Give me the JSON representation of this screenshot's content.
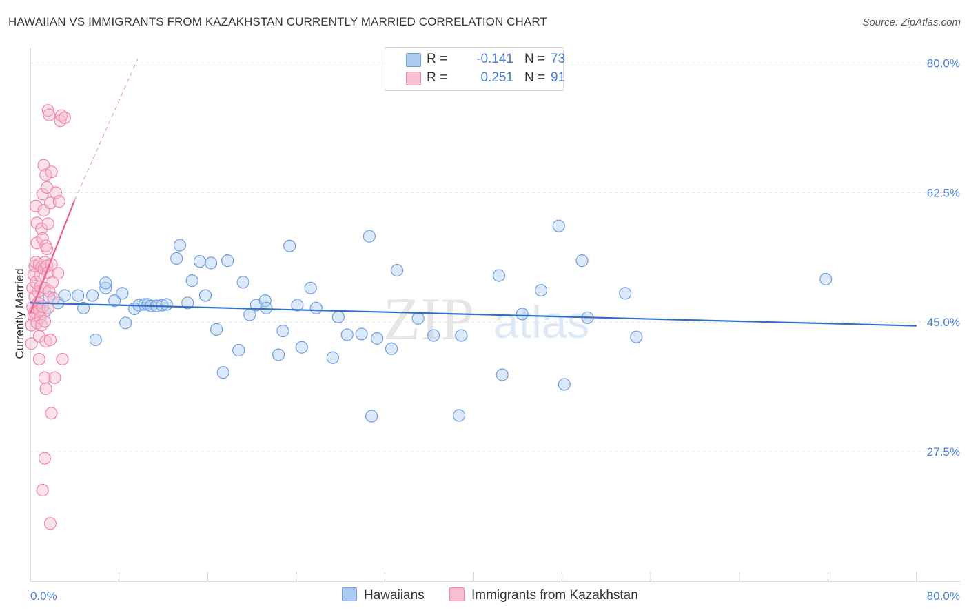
{
  "header": {
    "title": "HAWAIIAN VS IMMIGRANTS FROM KAZAKHSTAN CURRENTLY MARRIED CORRELATION CHART",
    "source": "Source: ZipAtlas.com"
  },
  "watermark": {
    "zip": "ZIP",
    "atlas": "atlas"
  },
  "legend_top": {
    "rows": [
      {
        "r_label": "R =",
        "r_value": "-0.141",
        "n_label": "N =",
        "n_value": "73"
      },
      {
        "r_label": "R =",
        "r_value": "0.251",
        "n_label": "N =",
        "n_value": "91"
      }
    ]
  },
  "legend_bottom": {
    "items": [
      "Hawaiians",
      "Immigrants from Kazakhstan"
    ]
  },
  "colors": {
    "blue_fill": "#aecbf2",
    "blue_stroke": "#6d9ee0",
    "blue_line": "#2e6fd0",
    "pink_fill": "#f7bfd1",
    "pink_stroke": "#ef86a8",
    "pink_line": "#ec5e8e",
    "tick_text": "#4a7fd4",
    "grid": "#e3e3e3"
  },
  "chart_data": {
    "type": "scatter",
    "title": "HAWAIIAN VS IMMIGRANTS FROM KAZAKHSTAN CURRENTLY MARRIED CORRELATION CHART",
    "xlabel": "",
    "ylabel": "Currently Married",
    "xlim": [
      0,
      80
    ],
    "ylim": [
      10,
      82
    ],
    "x_tick_labels": [
      "0.0%",
      "80.0%"
    ],
    "y_ticks": [
      27.5,
      45.0,
      62.5,
      80.0
    ],
    "y_tick_labels": [
      "27.5%",
      "45.0%",
      "62.5%",
      "80.0%"
    ],
    "grid": true,
    "legend_position": "top-center",
    "series": [
      {
        "name": "Hawaiians",
        "r": -0.141,
        "n": 73,
        "trend": {
          "x": [
            0,
            80
          ],
          "y": [
            47.6,
            44.5
          ]
        },
        "points": [
          [
            0.8,
            47.1
          ],
          [
            1.3,
            46.4
          ],
          [
            1.7,
            48.4
          ],
          [
            2.5,
            47.6
          ],
          [
            3.1,
            48.6
          ],
          [
            4.3,
            48.6
          ],
          [
            4.8,
            46.9
          ],
          [
            5.6,
            48.6
          ],
          [
            5.9,
            42.6
          ],
          [
            6.8,
            49.6
          ],
          [
            6.8,
            50.3
          ],
          [
            7.6,
            47.9
          ],
          [
            8.3,
            48.9
          ],
          [
            8.6,
            44.9
          ],
          [
            9.4,
            46.8
          ],
          [
            9.8,
            47.3
          ],
          [
            10.3,
            47.4
          ],
          [
            10.6,
            47.4
          ],
          [
            10.9,
            47.2
          ],
          [
            11.4,
            47.2
          ],
          [
            11.9,
            47.3
          ],
          [
            12.3,
            47.4
          ],
          [
            13.2,
            53.6
          ],
          [
            13.5,
            55.4
          ],
          [
            14.2,
            47.6
          ],
          [
            14.6,
            50.6
          ],
          [
            15.3,
            53.2
          ],
          [
            15.8,
            48.6
          ],
          [
            16.3,
            53.0
          ],
          [
            16.8,
            44.0
          ],
          [
            17.4,
            38.2
          ],
          [
            17.8,
            53.3
          ],
          [
            18.8,
            41.2
          ],
          [
            19.2,
            50.4
          ],
          [
            19.8,
            46.0
          ],
          [
            20.4,
            47.3
          ],
          [
            21.2,
            47.9
          ],
          [
            21.3,
            46.9
          ],
          [
            22.4,
            40.6
          ],
          [
            22.8,
            43.8
          ],
          [
            23.4,
            55.3
          ],
          [
            24.1,
            47.3
          ],
          [
            24.5,
            41.6
          ],
          [
            25.3,
            49.6
          ],
          [
            25.8,
            46.9
          ],
          [
            27.3,
            40.2
          ],
          [
            27.8,
            45.7
          ],
          [
            28.6,
            43.3
          ],
          [
            29.9,
            43.4
          ],
          [
            30.6,
            56.6
          ],
          [
            30.8,
            32.3
          ],
          [
            31.3,
            42.8
          ],
          [
            32.6,
            41.4
          ],
          [
            33.1,
            52.0
          ],
          [
            35.0,
            45.5
          ],
          [
            36.4,
            43.2
          ],
          [
            38.7,
            32.4
          ],
          [
            38.9,
            43.2
          ],
          [
            42.3,
            51.3
          ],
          [
            42.6,
            37.9
          ],
          [
            44.4,
            46.1
          ],
          [
            46.1,
            49.3
          ],
          [
            47.7,
            58.0
          ],
          [
            48.2,
            36.6
          ],
          [
            49.8,
            53.3
          ],
          [
            50.3,
            45.6
          ],
          [
            53.7,
            48.9
          ],
          [
            54.7,
            43.0
          ],
          [
            71.8,
            50.8
          ]
        ]
      },
      {
        "name": "Immigrants from Kazakhstan",
        "r": 0.251,
        "n": 91,
        "trend": {
          "x": [
            0,
            4
          ],
          "y": [
            46.2,
            61.5
          ]
        },
        "trend_extension": {
          "x": [
            4,
            9.7
          ],
          "y": [
            61.5,
            80.6
          ]
        },
        "points": [
          [
            0.1,
            42.1
          ],
          [
            0.1,
            44.6
          ],
          [
            0.2,
            47.0
          ],
          [
            0.2,
            49.6
          ],
          [
            0.3,
            45.9
          ],
          [
            0.3,
            51.4
          ],
          [
            0.4,
            48.4
          ],
          [
            0.4,
            52.6
          ],
          [
            0.4,
            46.3
          ],
          [
            0.5,
            50.4
          ],
          [
            0.5,
            53.1
          ],
          [
            0.5,
            60.7
          ],
          [
            0.6,
            55.7
          ],
          [
            0.6,
            58.4
          ],
          [
            0.6,
            46.8
          ],
          [
            0.6,
            44.9
          ],
          [
            0.7,
            49.1
          ],
          [
            0.7,
            47.6
          ],
          [
            0.8,
            52.8
          ],
          [
            0.8,
            43.1
          ],
          [
            0.8,
            46.6
          ],
          [
            0.9,
            51.3
          ],
          [
            0.9,
            49.8
          ],
          [
            0.9,
            45.6
          ],
          [
            1.0,
            52.4
          ],
          [
            1.0,
            57.6
          ],
          [
            1.0,
            44.6
          ],
          [
            1.1,
            62.3
          ],
          [
            1.1,
            47.1
          ],
          [
            1.1,
            56.3
          ],
          [
            1.2,
            52.2
          ],
          [
            1.2,
            60.1
          ],
          [
            1.2,
            66.2
          ],
          [
            1.3,
            53.1
          ],
          [
            1.3,
            49.6
          ],
          [
            1.3,
            45.1
          ],
          [
            1.4,
            55.3
          ],
          [
            1.4,
            64.9
          ],
          [
            1.4,
            42.4
          ],
          [
            1.5,
            52.6
          ],
          [
            1.5,
            54.9
          ],
          [
            1.5,
            63.2
          ],
          [
            1.6,
            73.6
          ],
          [
            1.6,
            58.3
          ],
          [
            1.6,
            51.7
          ],
          [
            1.6,
            46.9
          ],
          [
            1.7,
            73.0
          ],
          [
            1.7,
            49.2
          ],
          [
            1.8,
            42.6
          ],
          [
            1.8,
            61.1
          ],
          [
            1.9,
            52.8
          ],
          [
            1.9,
            65.3
          ],
          [
            2.0,
            50.4
          ],
          [
            2.1,
            48.2
          ],
          [
            2.3,
            62.5
          ],
          [
            2.5,
            51.6
          ],
          [
            2.6,
            61.3
          ],
          [
            2.7,
            72.2
          ],
          [
            2.8,
            72.9
          ],
          [
            3.1,
            72.6
          ],
          [
            0.8,
            40.0
          ],
          [
            1.3,
            37.5
          ],
          [
            1.4,
            36.0
          ],
          [
            1.9,
            32.7
          ],
          [
            1.3,
            26.6
          ],
          [
            1.1,
            22.3
          ],
          [
            1.8,
            17.8
          ],
          [
            2.9,
            40.0
          ],
          [
            2.2,
            37.5
          ]
        ]
      }
    ]
  }
}
